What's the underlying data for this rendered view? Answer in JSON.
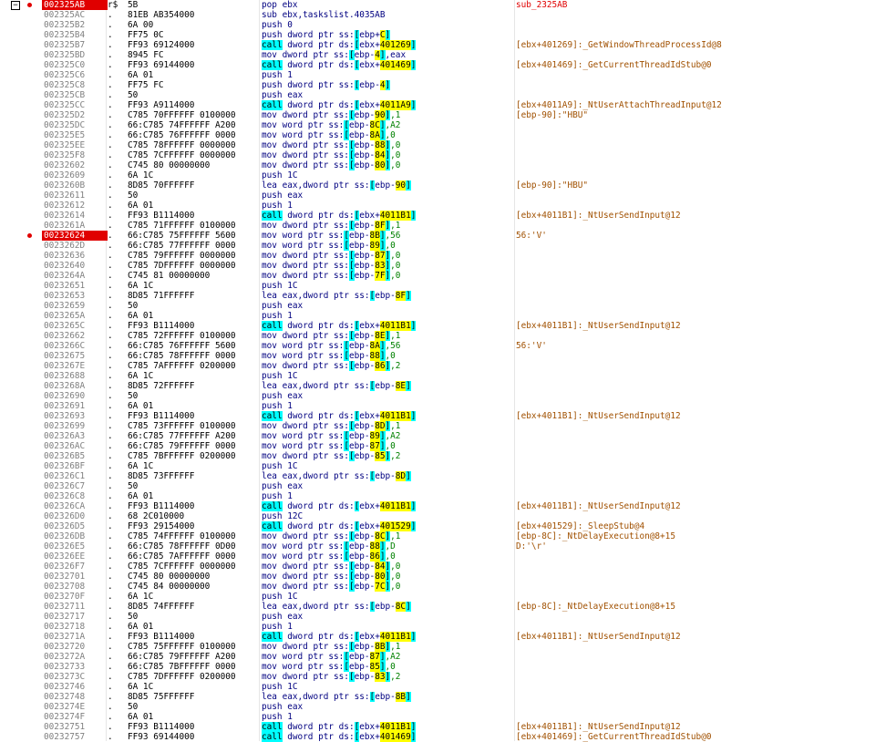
{
  "disasm": {
    "rows": [
      {
        "addr": "002325AB",
        "mark": "r$",
        "bytes": "5B",
        "instr": "pop ebx",
        "cmt": "sub_2325AB",
        "bp": true,
        "fold": true,
        "label": true
      },
      {
        "addr": "002325AC",
        "mark": ".",
        "bytes": "81EB AB354000",
        "instr": "sub ebx,taskslist.4035AB",
        "cmt": ""
      },
      {
        "addr": "002325B2",
        "mark": ".",
        "bytes": "6A 00",
        "instr": "push 0",
        "cmt": ""
      },
      {
        "addr": "002325B4",
        "mark": ".",
        "bytes": "FF75 0C",
        "instr": "push dword ptr ss:[ebp+C]",
        "cmt": ""
      },
      {
        "addr": "002325B7",
        "mark": ".",
        "bytes": "FF93 69124000",
        "instr": "call dword ptr ds:[ebx+401269]",
        "cmt": "[ebx+401269]:_GetWindowThreadProcessId@8"
      },
      {
        "addr": "002325BD",
        "mark": ".",
        "bytes": "8945 FC",
        "instr": "mov dword ptr ss:[ebp-4],eax",
        "cmt": ""
      },
      {
        "addr": "002325C0",
        "mark": ".",
        "bytes": "FF93 69144000",
        "instr": "call dword ptr ds:[ebx+401469]",
        "cmt": "[ebx+401469]:_GetCurrentThreadIdStub@0"
      },
      {
        "addr": "002325C6",
        "mark": ".",
        "bytes": "6A 01",
        "instr": "push 1",
        "cmt": ""
      },
      {
        "addr": "002325C8",
        "mark": ".",
        "bytes": "FF75 FC",
        "instr": "push dword ptr ss:[ebp-4]",
        "cmt": ""
      },
      {
        "addr": "002325CB",
        "mark": ".",
        "bytes": "50",
        "instr": "push eax",
        "cmt": ""
      },
      {
        "addr": "002325CC",
        "mark": ".",
        "bytes": "FF93 A9114000",
        "instr": "call dword ptr ds:[ebx+4011A9]",
        "cmt": "[ebx+4011A9]:_NtUserAttachThreadInput@12"
      },
      {
        "addr": "002325D2",
        "mark": ".",
        "bytes": "C785 70FFFFFF 0100000",
        "instr": "mov dword ptr ss:[ebp-90],1",
        "cmt": "[ebp-90]:\"HBU\""
      },
      {
        "addr": "002325DC",
        "mark": ".",
        "bytes": "66:C785 74FFFFFF A200",
        "instr": "mov word ptr ss:[ebp-8C],A2",
        "cmt": ""
      },
      {
        "addr": "002325E5",
        "mark": ".",
        "bytes": "66:C785 76FFFFFF 0000",
        "instr": "mov word ptr ss:[ebp-8A],0",
        "cmt": ""
      },
      {
        "addr": "002325EE",
        "mark": ".",
        "bytes": "C785 78FFFFFF 0000000",
        "instr": "mov dword ptr ss:[ebp-88],0",
        "cmt": ""
      },
      {
        "addr": "002325F8",
        "mark": ".",
        "bytes": "C785 7CFFFFFF 0000000",
        "instr": "mov dword ptr ss:[ebp-84],0",
        "cmt": ""
      },
      {
        "addr": "00232602",
        "mark": ".",
        "bytes": "C745 80 00000000",
        "instr": "mov dword ptr ss:[ebp-80],0",
        "cmt": ""
      },
      {
        "addr": "00232609",
        "mark": ".",
        "bytes": "6A 1C",
        "instr": "push 1C",
        "cmt": ""
      },
      {
        "addr": "0023260B",
        "mark": ".",
        "bytes": "8D85 70FFFFFF",
        "instr": "lea eax,dword ptr ss:[ebp-90]",
        "cmt": "[ebp-90]:\"HBU\""
      },
      {
        "addr": "00232611",
        "mark": ".",
        "bytes": "50",
        "instr": "push eax",
        "cmt": ""
      },
      {
        "addr": "00232612",
        "mark": ".",
        "bytes": "6A 01",
        "instr": "push 1",
        "cmt": ""
      },
      {
        "addr": "00232614",
        "mark": ".",
        "bytes": "FF93 B1114000",
        "instr": "call dword ptr ds:[ebx+4011B1]",
        "cmt": "[ebx+4011B1]:_NtUserSendInput@12"
      },
      {
        "addr": "0023261A",
        "mark": ".",
        "bytes": "C785 71FFFFFF 0100000",
        "instr": "mov dword ptr ss:[ebp-8F],1",
        "cmt": ""
      },
      {
        "addr": "00232624",
        "mark": ".",
        "bytes": "66:C785 75FFFFFF 5600",
        "instr": "mov word ptr ss:[ebp-8B],56",
        "cmt": "56:'V'",
        "cur": true
      },
      {
        "addr": "0023262D",
        "mark": ".",
        "bytes": "66:C785 77FFFFFF 0000",
        "instr": "mov word ptr ss:[ebp-89],0",
        "cmt": ""
      },
      {
        "addr": "00232636",
        "mark": ".",
        "bytes": "C785 79FFFFFF 0000000",
        "instr": "mov dword ptr ss:[ebp-87],0",
        "cmt": ""
      },
      {
        "addr": "00232640",
        "mark": ".",
        "bytes": "C785 7DFFFFFF 0000000",
        "instr": "mov dword ptr ss:[ebp-83],0",
        "cmt": ""
      },
      {
        "addr": "0023264A",
        "mark": ".",
        "bytes": "C745 81 00000000",
        "instr": "mov dword ptr ss:[ebp-7F],0",
        "cmt": ""
      },
      {
        "addr": "00232651",
        "mark": ".",
        "bytes": "6A 1C",
        "instr": "push 1C",
        "cmt": ""
      },
      {
        "addr": "00232653",
        "mark": ".",
        "bytes": "8D85 71FFFFFF",
        "instr": "lea eax,dword ptr ss:[ebp-8F]",
        "cmt": ""
      },
      {
        "addr": "00232659",
        "mark": ".",
        "bytes": "50",
        "instr": "push eax",
        "cmt": ""
      },
      {
        "addr": "0023265A",
        "mark": ".",
        "bytes": "6A 01",
        "instr": "push 1",
        "cmt": ""
      },
      {
        "addr": "0023265C",
        "mark": ".",
        "bytes": "FF93 B1114000",
        "instr": "call dword ptr ds:[ebx+4011B1]",
        "cmt": "[ebx+4011B1]:_NtUserSendInput@12"
      },
      {
        "addr": "00232662",
        "mark": ".",
        "bytes": "C785 72FFFFFF 0100000",
        "instr": "mov dword ptr ss:[ebp-8E],1",
        "cmt": ""
      },
      {
        "addr": "0023266C",
        "mark": ".",
        "bytes": "66:C785 76FFFFFF 5600",
        "instr": "mov word ptr ss:[ebp-8A],56",
        "cmt": "56:'V'"
      },
      {
        "addr": "00232675",
        "mark": ".",
        "bytes": "66:C785 78FFFFFF 0000",
        "instr": "mov word ptr ss:[ebp-88],0",
        "cmt": ""
      },
      {
        "addr": "0023267E",
        "mark": ".",
        "bytes": "C785 7AFFFFFF 0200000",
        "instr": "mov dword ptr ss:[ebp-86],2",
        "cmt": ""
      },
      {
        "addr": "00232688",
        "mark": ".",
        "bytes": "6A 1C",
        "instr": "push 1C",
        "cmt": ""
      },
      {
        "addr": "0023268A",
        "mark": ".",
        "bytes": "8D85 72FFFFFF",
        "instr": "lea eax,dword ptr ss:[ebp-8E]",
        "cmt": ""
      },
      {
        "addr": "00232690",
        "mark": ".",
        "bytes": "50",
        "instr": "push eax",
        "cmt": ""
      },
      {
        "addr": "00232691",
        "mark": ".",
        "bytes": "6A 01",
        "instr": "push 1",
        "cmt": ""
      },
      {
        "addr": "00232693",
        "mark": ".",
        "bytes": "FF93 B1114000",
        "instr": "call dword ptr ds:[ebx+4011B1]",
        "cmt": "[ebx+4011B1]:_NtUserSendInput@12"
      },
      {
        "addr": "00232699",
        "mark": ".",
        "bytes": "C785 73FFFFFF 0100000",
        "instr": "mov dword ptr ss:[ebp-8D],1",
        "cmt": ""
      },
      {
        "addr": "002326A3",
        "mark": ".",
        "bytes": "66:C785 77FFFFFF A200",
        "instr": "mov word ptr ss:[ebp-89],A2",
        "cmt": ""
      },
      {
        "addr": "002326AC",
        "mark": ".",
        "bytes": "66:C785 79FFFFFF 0000",
        "instr": "mov word ptr ss:[ebp-87],0",
        "cmt": ""
      },
      {
        "addr": "002326B5",
        "mark": ".",
        "bytes": "C785 7BFFFFFF 0200000",
        "instr": "mov dword ptr ss:[ebp-85],2",
        "cmt": ""
      },
      {
        "addr": "002326BF",
        "mark": ".",
        "bytes": "6A 1C",
        "instr": "push 1C",
        "cmt": ""
      },
      {
        "addr": "002326C1",
        "mark": ".",
        "bytes": "8D85 73FFFFFF",
        "instr": "lea eax,dword ptr ss:[ebp-8D]",
        "cmt": ""
      },
      {
        "addr": "002326C7",
        "mark": ".",
        "bytes": "50",
        "instr": "push eax",
        "cmt": ""
      },
      {
        "addr": "002326C8",
        "mark": ".",
        "bytes": "6A 01",
        "instr": "push 1",
        "cmt": ""
      },
      {
        "addr": "002326CA",
        "mark": ".",
        "bytes": "FF93 B1114000",
        "instr": "call dword ptr ds:[ebx+4011B1]",
        "cmt": "[ebx+4011B1]:_NtUserSendInput@12"
      },
      {
        "addr": "002326D0",
        "mark": ".",
        "bytes": "68 2C010000",
        "instr": "push 12C",
        "cmt": ""
      },
      {
        "addr": "002326D5",
        "mark": ".",
        "bytes": "FF93 29154000",
        "instr": "call dword ptr ds:[ebx+401529]",
        "cmt": "[ebx+401529]:_SleepStub@4"
      },
      {
        "addr": "002326DB",
        "mark": ".",
        "bytes": "C785 74FFFFFF 0100000",
        "instr": "mov dword ptr ss:[ebp-8C],1",
        "cmt": "[ebp-8C]:_NtDelayExecution@8+15"
      },
      {
        "addr": "002326E5",
        "mark": ".",
        "bytes": "66:C785 78FFFFFF 0D00",
        "instr": "mov word ptr ss:[ebp-88],D",
        "cmt": "D:'\\r'"
      },
      {
        "addr": "002326EE",
        "mark": ".",
        "bytes": "66:C785 7AFFFFFF 0000",
        "instr": "mov word ptr ss:[ebp-86],0",
        "cmt": ""
      },
      {
        "addr": "002326F7",
        "mark": ".",
        "bytes": "C785 7CFFFFFF 0000000",
        "instr": "mov dword ptr ss:[ebp-84],0",
        "cmt": ""
      },
      {
        "addr": "00232701",
        "mark": ".",
        "bytes": "C745 80 00000000",
        "instr": "mov dword ptr ss:[ebp-80],0",
        "cmt": ""
      },
      {
        "addr": "00232708",
        "mark": ".",
        "bytes": "C745 84 00000000",
        "instr": "mov dword ptr ss:[ebp-7C],0",
        "cmt": ""
      },
      {
        "addr": "0023270F",
        "mark": ".",
        "bytes": "6A 1C",
        "instr": "push 1C",
        "cmt": ""
      },
      {
        "addr": "00232711",
        "mark": ".",
        "bytes": "8D85 74FFFFFF",
        "instr": "lea eax,dword ptr ss:[ebp-8C]",
        "cmt": "[ebp-8C]:_NtDelayExecution@8+15"
      },
      {
        "addr": "00232717",
        "mark": ".",
        "bytes": "50",
        "instr": "push eax",
        "cmt": ""
      },
      {
        "addr": "00232718",
        "mark": ".",
        "bytes": "6A 01",
        "instr": "push 1",
        "cmt": ""
      },
      {
        "addr": "0023271A",
        "mark": ".",
        "bytes": "FF93 B1114000",
        "instr": "call dword ptr ds:[ebx+4011B1]",
        "cmt": "[ebx+4011B1]:_NtUserSendInput@12"
      },
      {
        "addr": "00232720",
        "mark": ".",
        "bytes": "C785 75FFFFFF 0100000",
        "instr": "mov dword ptr ss:[ebp-8B],1",
        "cmt": ""
      },
      {
        "addr": "0023272A",
        "mark": ".",
        "bytes": "66:C785 79FFFFFF A200",
        "instr": "mov word ptr ss:[ebp-87],A2",
        "cmt": ""
      },
      {
        "addr": "00232733",
        "mark": ".",
        "bytes": "66:C785 7BFFFFFF 0000",
        "instr": "mov word ptr ss:[ebp-85],0",
        "cmt": ""
      },
      {
        "addr": "0023273C",
        "mark": ".",
        "bytes": "C785 7DFFFFFF 0200000",
        "instr": "mov dword ptr ss:[ebp-83],2",
        "cmt": ""
      },
      {
        "addr": "00232746",
        "mark": ".",
        "bytes": "6A 1C",
        "instr": "push 1C",
        "cmt": ""
      },
      {
        "addr": "00232748",
        "mark": ".",
        "bytes": "8D85 75FFFFFF",
        "instr": "lea eax,dword ptr ss:[ebp-8B]",
        "cmt": ""
      },
      {
        "addr": "0023274E",
        "mark": ".",
        "bytes": "50",
        "instr": "push eax",
        "cmt": ""
      },
      {
        "addr": "0023274F",
        "mark": ".",
        "bytes": "6A 01",
        "instr": "push 1",
        "cmt": ""
      },
      {
        "addr": "00232751",
        "mark": ".",
        "bytes": "FF93 B1114000",
        "instr": "call dword ptr ds:[ebx+4011B1]",
        "cmt": "[ebx+4011B1]:_NtUserSendInput@12"
      },
      {
        "addr": "00232757",
        "mark": ".",
        "bytes": "FF93 69144000",
        "instr": "call dword ptr ds:[ebx+401469]",
        "cmt": "[ebx+401469]:_GetCurrentThreadIdStub@0"
      }
    ]
  },
  "colors": {
    "breakpoint": "#e00000",
    "call_highlight": "#00ffff",
    "offset_highlight": "#ffff00",
    "address_text": "#808080",
    "comment_text": "#a05000",
    "mnemonic_text": "#000080",
    "number_text": "#008000"
  },
  "icons": {
    "fold": "collapse-box-icon",
    "breakpoint": "breakpoint-dot-icon"
  }
}
